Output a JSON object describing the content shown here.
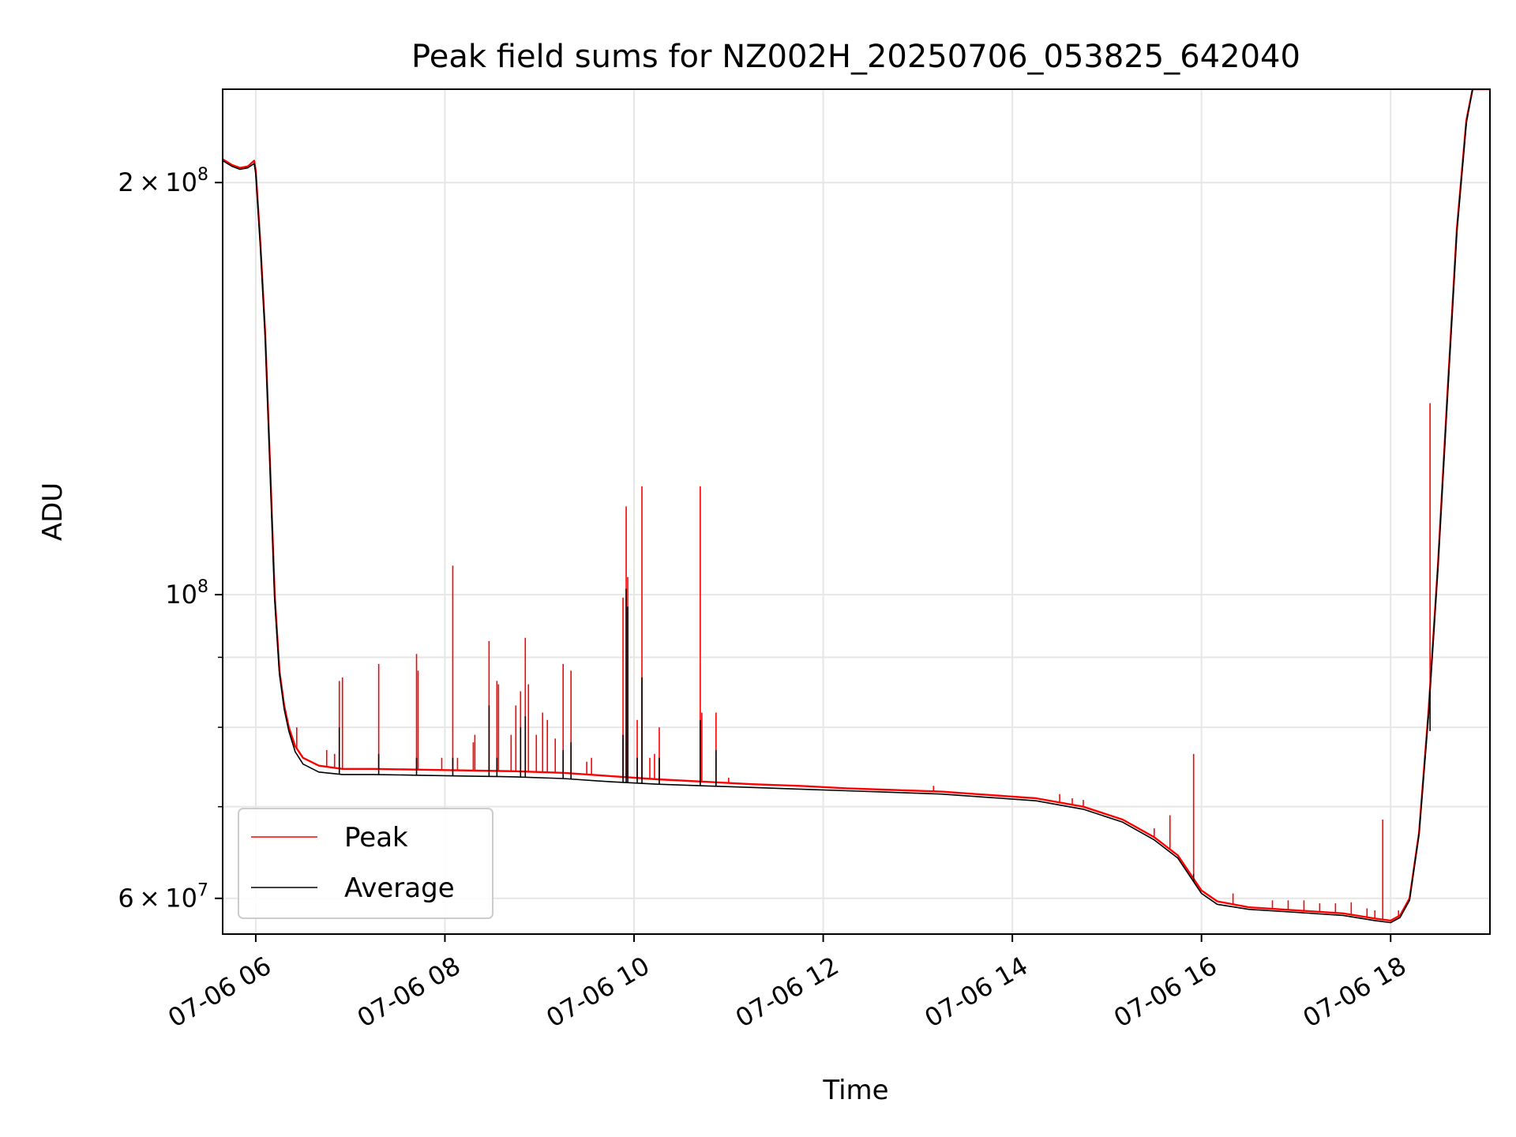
{
  "chart_data": {
    "type": "line",
    "title": "Peak field sums for NZ002H_20250706_053825_642040",
    "xlabel": "Time",
    "ylabel": "ADU",
    "y_scale": "log",
    "xlim": [
      "07-06 05:39",
      "07-06 19:03"
    ],
    "ylim": [
      56500000,
      234000000
    ],
    "grid": true,
    "legend_placement": "lower-left",
    "x_ticks": [
      {
        "value": "07-06 06:00",
        "label": "07-06 06"
      },
      {
        "value": "07-06 08:00",
        "label": "07-06 08"
      },
      {
        "value": "07-06 10:00",
        "label": "07-06 10"
      },
      {
        "value": "07-06 12:00",
        "label": "07-06 12"
      },
      {
        "value": "07-06 14:00",
        "label": "07-06 14"
      },
      {
        "value": "07-06 16:00",
        "label": "07-06 16"
      },
      {
        "value": "07-06 18:00",
        "label": "07-06 18"
      }
    ],
    "y_major_ticks": [
      {
        "value": 60000000,
        "base": "6",
        "exp": "7"
      },
      {
        "value": 100000000,
        "base": "",
        "exp": "8"
      },
      {
        "value": 200000000,
        "base": "2",
        "exp": "8"
      }
    ],
    "y_minor_ticks": [
      70000000,
      80000000,
      90000000
    ],
    "series": [
      {
        "name": "Peak",
        "color": "#ff0000",
        "points": [
          [
            "07-06 05:39",
            208000000
          ],
          [
            "07-06 05:45",
            206000000
          ],
          [
            "07-06 05:50",
            205000000
          ],
          [
            "07-06 05:55",
            205500000
          ],
          [
            "07-06 05:59",
            207500000
          ],
          [
            "07-06 06:00",
            204000000
          ],
          [
            "07-06 06:03",
            180000000
          ],
          [
            "07-06 06:06",
            155000000
          ],
          [
            "07-06 06:09",
            125000000
          ],
          [
            "07-06 06:12",
            100000000
          ],
          [
            "07-06 06:15",
            88000000
          ],
          [
            "07-06 06:18",
            83000000
          ],
          [
            "07-06 06:21",
            80000000
          ],
          [
            "07-06 06:25",
            77500000
          ],
          [
            "07-06 06:30",
            76000000
          ],
          [
            "07-06 06:40",
            75000000
          ],
          [
            "07-06 06:55",
            74600000
          ],
          [
            "07-06 07:15",
            74600000
          ],
          [
            "07-06 07:45",
            74500000
          ],
          [
            "07-06 08:15",
            74400000
          ],
          [
            "07-06 08:45",
            74300000
          ],
          [
            "07-06 09:15",
            74100000
          ],
          [
            "07-06 09:45",
            73700000
          ],
          [
            "07-06 10:15",
            73300000
          ],
          [
            "07-06 10:45",
            73000000
          ],
          [
            "07-06 11:15",
            72700000
          ],
          [
            "07-06 11:45",
            72500000
          ],
          [
            "07-06 12:15",
            72200000
          ],
          [
            "07-06 12:45",
            72000000
          ],
          [
            "07-06 13:15",
            71800000
          ],
          [
            "07-06 13:45",
            71400000
          ],
          [
            "07-06 14:15",
            71000000
          ],
          [
            "07-06 14:45",
            70000000
          ],
          [
            "07-06 15:10",
            68500000
          ],
          [
            "07-06 15:30",
            66500000
          ],
          [
            "07-06 15:45",
            64500000
          ],
          [
            "07-06 15:55",
            62000000
          ],
          [
            "07-06 16:00",
            60800000
          ],
          [
            "07-06 16:10",
            59700000
          ],
          [
            "07-06 16:30",
            59100000
          ],
          [
            "07-06 17:00",
            58800000
          ],
          [
            "07-06 17:30",
            58500000
          ],
          [
            "07-06 17:50",
            58000000
          ],
          [
            "07-06 18:00",
            57800000
          ],
          [
            "07-06 18:06",
            58300000
          ],
          [
            "07-06 18:12",
            60000000
          ],
          [
            "07-06 18:18",
            67000000
          ],
          [
            "07-06 18:24",
            82000000
          ],
          [
            "07-06 18:30",
            105000000
          ],
          [
            "07-06 18:36",
            140000000
          ],
          [
            "07-06 18:42",
            185000000
          ],
          [
            "07-06 18:48",
            222000000
          ],
          [
            "07-06 18:52",
            234000000
          ],
          [
            "07-06 19:03",
            234000000
          ]
        ],
        "spikes": [
          [
            "07-06 06:26",
            80000000
          ],
          [
            "07-06 06:45",
            77000000
          ],
          [
            "07-06 06:50",
            76500000
          ],
          [
            "07-06 06:53",
            86500000
          ],
          [
            "07-06 06:55",
            87000000
          ],
          [
            "07-06 07:18",
            89000000
          ],
          [
            "07-06 07:42",
            90500000
          ],
          [
            "07-06 07:43",
            88000000
          ],
          [
            "07-06 07:58",
            76000000
          ],
          [
            "07-06 08:05",
            105000000
          ],
          [
            "07-06 08:08",
            76000000
          ],
          [
            "07-06 08:18",
            78000000
          ],
          [
            "07-06 08:19",
            79000000
          ],
          [
            "07-06 08:28",
            92500000
          ],
          [
            "07-06 08:33",
            86500000
          ],
          [
            "07-06 08:34",
            86000000
          ],
          [
            "07-06 08:42",
            79000000
          ],
          [
            "07-06 08:45",
            83000000
          ],
          [
            "07-06 08:48",
            85000000
          ],
          [
            "07-06 08:51",
            93000000
          ],
          [
            "07-06 08:53",
            86000000
          ],
          [
            "07-06 08:58",
            79000000
          ],
          [
            "07-06 09:02",
            82000000
          ],
          [
            "07-06 09:05",
            81000000
          ],
          [
            "07-06 09:10",
            78500000
          ],
          [
            "07-06 09:15",
            89000000
          ],
          [
            "07-06 09:20",
            88000000
          ],
          [
            "07-06 09:30",
            75500000
          ],
          [
            "07-06 09:33",
            76000000
          ],
          [
            "07-06 09:53",
            99500000
          ],
          [
            "07-06 09:55",
            116000000
          ],
          [
            "07-06 09:56",
            103000000
          ],
          [
            "07-06 10:02",
            81000000
          ],
          [
            "07-06 10:05",
            120000000
          ],
          [
            "07-06 10:10",
            76000000
          ],
          [
            "07-06 10:13",
            76500000
          ],
          [
            "07-06 10:16",
            80000000
          ],
          [
            "07-06 10:42",
            120000000
          ],
          [
            "07-06 10:43",
            82000000
          ],
          [
            "07-06 10:52",
            82000000
          ],
          [
            "07-06 11:00",
            73500000
          ],
          [
            "07-06 13:10",
            72500000
          ],
          [
            "07-06 14:30",
            71500000
          ],
          [
            "07-06 14:38",
            71000000
          ],
          [
            "07-06 14:45",
            70800000
          ],
          [
            "07-06 15:30",
            67500000
          ],
          [
            "07-06 15:40",
            69000000
          ],
          [
            "07-06 15:55",
            76500000
          ],
          [
            "07-06 16:20",
            60500000
          ],
          [
            "07-06 16:45",
            59800000
          ],
          [
            "07-06 16:55",
            59800000
          ],
          [
            "07-06 17:05",
            59800000
          ],
          [
            "07-06 17:15",
            59500000
          ],
          [
            "07-06 17:25",
            59500000
          ],
          [
            "07-06 17:35",
            59600000
          ],
          [
            "07-06 17:45",
            59000000
          ],
          [
            "07-06 17:50",
            58800000
          ],
          [
            "07-06 17:55",
            68500000
          ],
          [
            "07-06 18:05",
            58800000
          ],
          [
            "07-06 18:25",
            138000000
          ]
        ]
      },
      {
        "name": "Average",
        "color": "#000000",
        "points": [
          [
            "07-06 05:39",
            207500000
          ],
          [
            "07-06 05:45",
            205500000
          ],
          [
            "07-06 05:50",
            204500000
          ],
          [
            "07-06 05:55",
            205000000
          ],
          [
            "07-06 05:59",
            206500000
          ],
          [
            "07-06 06:00",
            203000000
          ],
          [
            "07-06 06:03",
            179000000
          ],
          [
            "07-06 06:06",
            154000000
          ],
          [
            "07-06 06:09",
            124000000
          ],
          [
            "07-06 06:12",
            99000000
          ],
          [
            "07-06 06:15",
            87500000
          ],
          [
            "07-06 06:18",
            82500000
          ],
          [
            "07-06 06:21",
            79500000
          ],
          [
            "07-06 06:25",
            76800000
          ],
          [
            "07-06 06:30",
            75200000
          ],
          [
            "07-06 06:40",
            74200000
          ],
          [
            "07-06 06:55",
            73900000
          ],
          [
            "07-06 07:15",
            73900000
          ],
          [
            "07-06 07:45",
            73800000
          ],
          [
            "07-06 08:15",
            73700000
          ],
          [
            "07-06 08:45",
            73600000
          ],
          [
            "07-06 09:15",
            73400000
          ],
          [
            "07-06 09:45",
            73000000
          ],
          [
            "07-06 10:15",
            72700000
          ],
          [
            "07-06 10:45",
            72500000
          ],
          [
            "07-06 11:15",
            72300000
          ],
          [
            "07-06 11:45",
            72100000
          ],
          [
            "07-06 12:15",
            71900000
          ],
          [
            "07-06 12:45",
            71700000
          ],
          [
            "07-06 13:15",
            71500000
          ],
          [
            "07-06 13:45",
            71100000
          ],
          [
            "07-06 14:15",
            70700000
          ],
          [
            "07-06 14:45",
            69700000
          ],
          [
            "07-06 15:10",
            68200000
          ],
          [
            "07-06 15:30",
            66200000
          ],
          [
            "07-06 15:45",
            64200000
          ],
          [
            "07-06 15:55",
            61700000
          ],
          [
            "07-06 16:00",
            60500000
          ],
          [
            "07-06 16:10",
            59400000
          ],
          [
            "07-06 16:30",
            58900000
          ],
          [
            "07-06 17:00",
            58600000
          ],
          [
            "07-06 17:30",
            58300000
          ],
          [
            "07-06 17:50",
            57800000
          ],
          [
            "07-06 18:00",
            57600000
          ],
          [
            "07-06 18:06",
            58100000
          ],
          [
            "07-06 18:12",
            59800000
          ],
          [
            "07-06 18:18",
            66800000
          ],
          [
            "07-06 18:24",
            81500000
          ],
          [
            "07-06 18:30",
            104500000
          ],
          [
            "07-06 18:36",
            139000000
          ],
          [
            "07-06 18:42",
            184000000
          ],
          [
            "07-06 18:48",
            221000000
          ],
          [
            "07-06 18:52",
            234000000
          ],
          [
            "07-06 19:03",
            234000000
          ]
        ],
        "spikes": [
          [
            "07-06 06:53",
            80000000
          ],
          [
            "07-06 07:18",
            76500000
          ],
          [
            "07-06 07:42",
            76000000
          ],
          [
            "07-06 08:05",
            76000000
          ],
          [
            "07-06 08:28",
            83000000
          ],
          [
            "07-06 08:33",
            76000000
          ],
          [
            "07-06 08:48",
            80000000
          ],
          [
            "07-06 08:51",
            81500000
          ],
          [
            "07-06 09:15",
            77000000
          ],
          [
            "07-06 09:20",
            78000000
          ],
          [
            "07-06 09:53",
            79000000
          ],
          [
            "07-06 09:55",
            101000000
          ],
          [
            "07-06 09:56",
            98000000
          ],
          [
            "07-06 10:02",
            76000000
          ],
          [
            "07-06 10:05",
            87000000
          ],
          [
            "07-06 10:16",
            76000000
          ],
          [
            "07-06 10:42",
            81000000
          ],
          [
            "07-06 10:52",
            77000000
          ],
          [
            "07-06 15:55",
            62500000
          ],
          [
            "07-06 18:25",
            79500000
          ]
        ]
      }
    ]
  }
}
